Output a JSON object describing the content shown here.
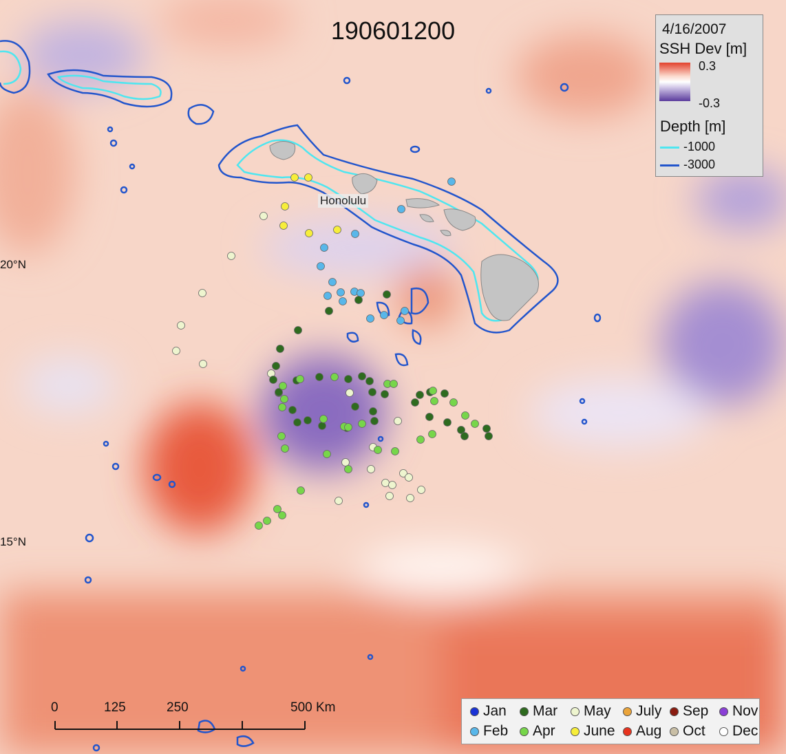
{
  "title": "190601200",
  "date": "4/16/2007",
  "ssh_legend": {
    "title": "SSH Dev [m]",
    "max": "0.3",
    "min": "-0.3"
  },
  "depth_legend": {
    "title": "Depth [m]",
    "items": [
      {
        "label": "-1000",
        "color": "#4ee6f0"
      },
      {
        "label": "-3000",
        "color": "#2255cc"
      }
    ]
  },
  "place_label": "Honolulu",
  "lat_labels": [
    {
      "label": "20°N",
      "y": 20
    },
    {
      "label": "15°N",
      "y": 15
    }
  ],
  "scale_bar": {
    "labels": [
      "0",
      "125",
      "250",
      "500 Km"
    ]
  },
  "month_legend": [
    {
      "label": "Jan",
      "color": "#1a33d6"
    },
    {
      "label": "Feb",
      "color": "#58b7ea"
    },
    {
      "label": "Mar",
      "color": "#2e6b1f"
    },
    {
      "label": "Apr",
      "color": "#77d64a"
    },
    {
      "label": "May",
      "color": "#eef5cf"
    },
    {
      "label": "June",
      "color": "#f7ee3a"
    },
    {
      "label": "July",
      "color": "#eba43a"
    },
    {
      "label": "Aug",
      "color": "#e8331e"
    },
    {
      "label": "Sep",
      "color": "#8a1c10"
    },
    {
      "label": "Oct",
      "color": "#c9bfa6"
    },
    {
      "label": "Nov",
      "color": "#8a3fd6"
    },
    {
      "label": "Dec",
      "color": "#ffffff"
    }
  ],
  "colors": {
    "ssh_positive": "#e8573f",
    "ssh_negative": "#6b4fb0",
    "land": "#c4c4c4",
    "contour_1000": "#4ee6f0",
    "contour_3000": "#2255cc"
  }
}
